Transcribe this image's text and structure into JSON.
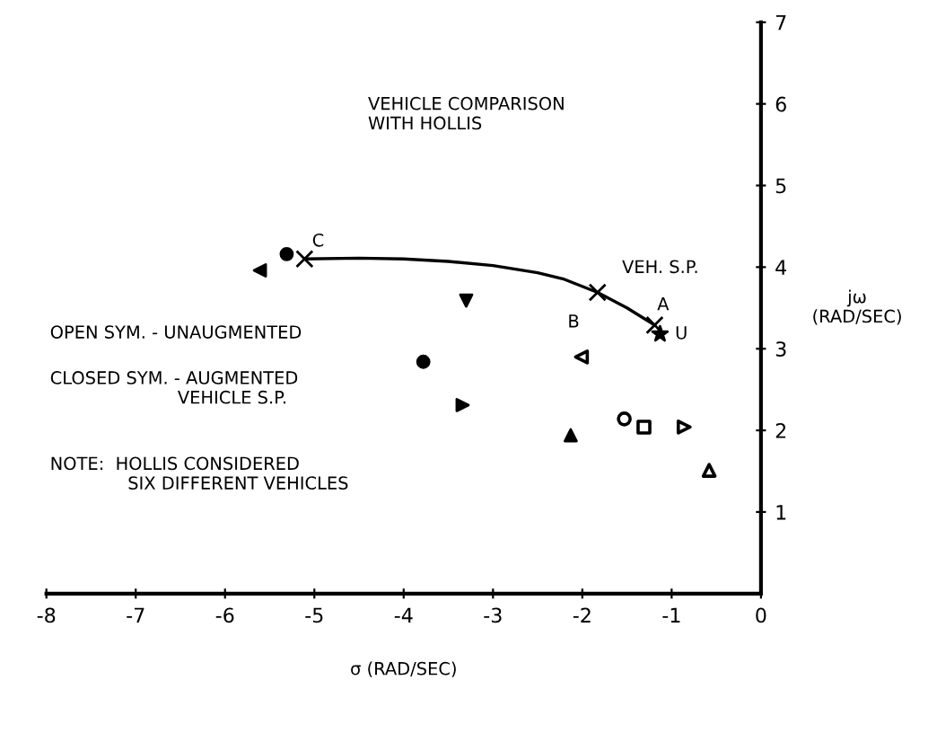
{
  "chart_data": {
    "type": "scatter",
    "title": "VEHICLE COMPARISON\nWITH HOLLIS",
    "xlabel": "σ (RAD/SEC)",
    "ylabel": "jω\n(RAD/SEC)",
    "xlim": [
      -8,
      0
    ],
    "ylim": [
      0,
      7
    ],
    "xticks": [
      -8,
      -7,
      -6,
      -5,
      -4,
      -3,
      -2,
      -1,
      0
    ],
    "yticks": [
      1,
      2,
      3,
      4,
      5,
      6,
      7
    ],
    "grid": false,
    "legend": false,
    "series": [
      {
        "type": "line",
        "color": "#000000",
        "marker": "none",
        "x": [
          -5.11,
          -4.5,
          -4.0,
          -3.5,
          -3.0,
          -2.5,
          -2.2,
          -1.83,
          -1.5,
          -1.19
        ],
        "values": [
          4.1,
          4.11,
          4.1,
          4.07,
          4.02,
          3.93,
          3.85,
          3.69,
          3.5,
          3.29
        ]
      },
      {
        "color": "#000000",
        "marker": "cross",
        "x": [
          -5.11,
          -1.83,
          -1.19
        ],
        "values": [
          4.1,
          3.69,
          3.29
        ]
      },
      {
        "color": "#000000",
        "marker": "star",
        "x": [
          -1.13
        ],
        "values": [
          3.18
        ]
      },
      {
        "color": "#000000",
        "marker": "circle",
        "x": [
          -5.31,
          -3.78
        ],
        "values": [
          4.16,
          2.84
        ]
      },
      {
        "color": "#000000",
        "marker": "triangle_left",
        "x": [
          -5.61
        ],
        "values": [
          3.96
        ]
      },
      {
        "color": "#000000",
        "marker": "triangle_down",
        "x": [
          -3.3
        ],
        "values": [
          3.59
        ]
      },
      {
        "color": "#000000",
        "marker": "triangle_right",
        "x": [
          -3.34
        ],
        "values": [
          2.31
        ]
      },
      {
        "color": "#000000",
        "marker": "triangle",
        "x": [
          -2.13
        ],
        "values": [
          1.94
        ]
      },
      {
        "color": "#000000",
        "marker": "triangle_left_open",
        "x": [
          -2.01
        ],
        "values": [
          2.9
        ]
      },
      {
        "color": "#000000",
        "marker": "circle_open",
        "x": [
          -1.53
        ],
        "values": [
          2.14
        ]
      },
      {
        "color": "#000000",
        "marker": "square_open",
        "x": [
          -1.31
        ],
        "values": [
          2.04
        ]
      },
      {
        "color": "#000000",
        "marker": "triangle_right_open",
        "x": [
          -0.86
        ],
        "values": [
          2.04
        ]
      },
      {
        "color": "#000000",
        "marker": "triangle_open",
        "x": [
          -0.58
        ],
        "values": [
          1.51
        ]
      }
    ],
    "annotations": [
      {
        "text": "C",
        "x": -5.11,
        "y": 4.1
      },
      {
        "text": "B",
        "x": -1.83,
        "y": 3.69
      },
      {
        "text": "A",
        "x": -1.19,
        "y": 3.29
      },
      {
        "text": "U",
        "x": -1.13,
        "y": 3.18
      },
      {
        "text": "VEH. S.P.",
        "x": -1.5,
        "y": 3.5
      },
      "OPEN SYM. - UNAUGMENTED",
      "CLOSED SYM. - AUGMENTED\n                       VEHICLE S.P.",
      "NOTE:  HOLLIS CONSIDERED\n              SIX DIFFERENT VEHICLES"
    ]
  }
}
